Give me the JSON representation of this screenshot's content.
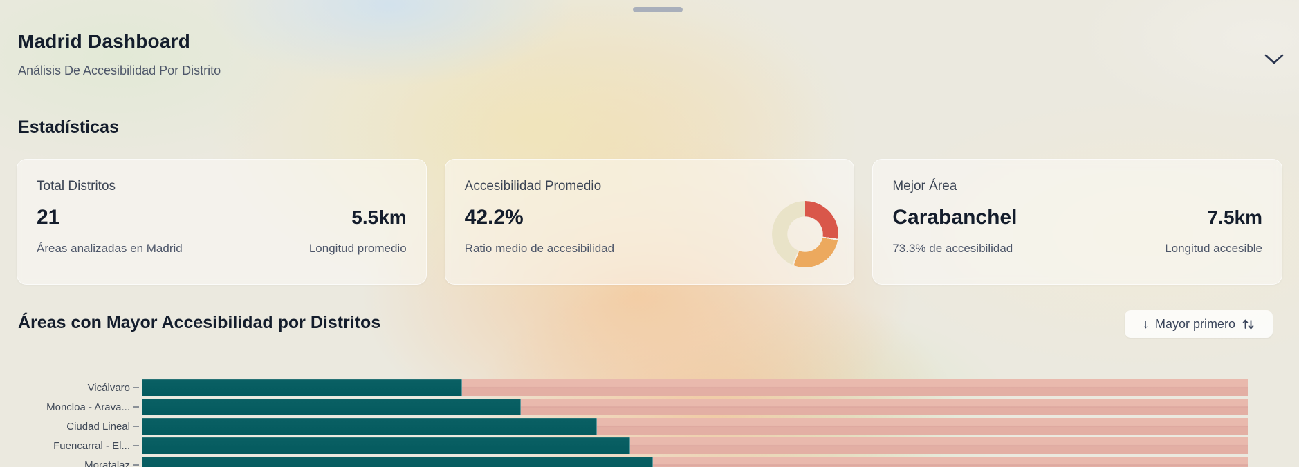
{
  "header": {
    "title": "Madrid Dashboard",
    "subtitle": "Análisis De Accesibilidad Por Distrito"
  },
  "stats": {
    "heading": "Estadísticas",
    "cards": [
      {
        "label": "Total Distritos",
        "value": "21",
        "value_right": "5.5km",
        "sub_left": "Áreas analizadas en Madrid",
        "sub_right": "Longitud promedio"
      },
      {
        "label": "Accesibilidad Promedio",
        "value": "42.2%",
        "sub_left": "Ratio medio de accesibilidad"
      },
      {
        "label": "Mejor Área",
        "value": "Carabanchel",
        "value_right": "7.5km",
        "sub_left": "73.3% de accesibilidad",
        "sub_right": "Longitud accesible"
      }
    ]
  },
  "chart_section": {
    "heading": "Áreas con Mayor Accesibilidad por Distritos",
    "sort_button": {
      "down_glyph": "↓",
      "label": "Mayor primero",
      "icon": "sort-up-down-arrows"
    }
  },
  "chart_data": [
    {
      "type": "pie",
      "subtype": "donut",
      "title": "Accesibilidad Promedio",
      "associated_value": "42.2%",
      "segments": [
        {
          "name": "segment-red",
          "color": "#d9574a",
          "start_deg": 0,
          "end_deg": 98
        },
        {
          "name": "segment-orange",
          "color": "#eca95e",
          "start_deg": 101,
          "end_deg": 200
        },
        {
          "name": "segment-beige",
          "color": "#e9e3c8",
          "start_deg": 203,
          "end_deg": 360
        }
      ]
    },
    {
      "type": "bar",
      "orientation": "horizontal",
      "title": "Áreas con Mayor Accesibilidad por Distritos",
      "categories": [
        "Vicálvaro",
        "Moncloa - Arava...",
        "Ciudad Lineal",
        "Fuencarral - El...",
        "Moratalaz"
      ],
      "values_pct": [
        28.9,
        34.2,
        41.1,
        44.1,
        46.2
      ],
      "xlim": [
        0,
        100
      ],
      "bar_color": "#065d61",
      "track_color": "#e7b5a9",
      "legend": "none",
      "gridlines": "off"
    }
  ],
  "colors": {
    "accent_teal": "#065d61",
    "track_pink": "#e7b5a9",
    "donut_red": "#d9574a",
    "donut_orange": "#eca95e",
    "donut_beige": "#e9e3c8",
    "text_dark": "#141d2c",
    "text_gray": "#4d5669"
  }
}
